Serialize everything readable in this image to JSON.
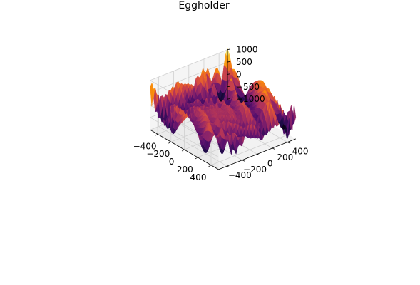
{
  "chart_data": {
    "type": "surface3d",
    "title": "Eggholder",
    "function": "f(x, y) = -(y + 47) * sin(sqrt(|x/2 + y + 47|)) - x * sin(sqrt(|x - (y + 47)|))",
    "colormap": "inferno",
    "xlabel": "",
    "ylabel": "",
    "zlabel": "",
    "x_range": [
      -512,
      512
    ],
    "y_range": [
      -512,
      512
    ],
    "zlim": [
      -1000,
      1000
    ],
    "x_ticks": [
      -400,
      -200,
      0,
      200,
      400
    ],
    "y_ticks": [
      -400,
      -200,
      0,
      200,
      400
    ],
    "z_ticks": [
      -1000,
      -500,
      0,
      500,
      1000
    ],
    "x_tick_labels": [
      "−400",
      "−200",
      "0",
      "200",
      "400"
    ],
    "y_tick_labels": [
      "−400",
      "−200",
      "0",
      "200",
      "400"
    ],
    "z_tick_labels": [
      "−1000",
      "−500",
      "0",
      "500",
      "1000"
    ],
    "grid": true
  }
}
